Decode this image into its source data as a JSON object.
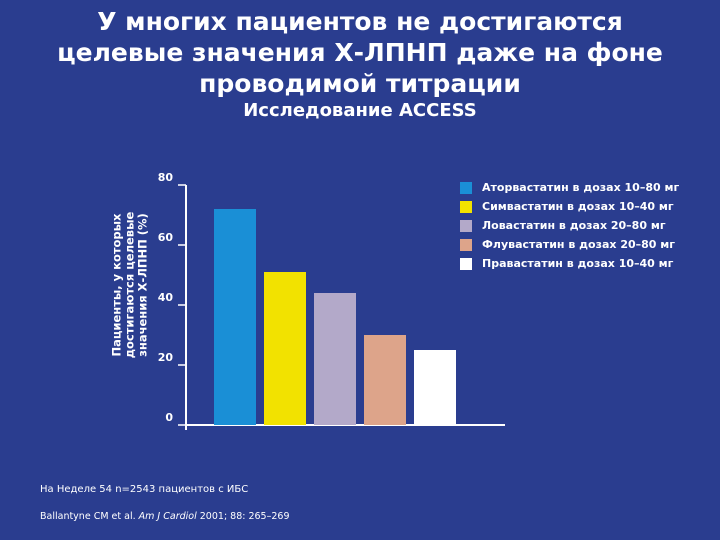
{
  "header": {
    "title_lines": [
      "У многих пациентов не достигаются",
      "целевые значения Х-ЛПНП даже на фоне",
      "проводимой титрации"
    ],
    "subtitle": "Исследование ACCESS"
  },
  "chart_data": {
    "type": "bar",
    "ylabel_lines": [
      "Пациенты, у которых",
      "достигаются целевые",
      "значения Х-ЛПНП (%)"
    ],
    "ylim": [
      0,
      80
    ],
    "yticks": [
      "0",
      "20",
      "40",
      "60",
      "80"
    ],
    "grid": false,
    "legend_position": "right",
    "series": [
      {
        "name": "Аторвастатин в дозах 10–80 мг",
        "value": 72,
        "color": "#1a8fd6"
      },
      {
        "name": "Симвастатин в дозах 10–40 мг",
        "value": 51,
        "color": "#f2e200"
      },
      {
        "name": "Ловастатин в дозах 20–80 мг",
        "value": 44,
        "color": "#b3a9c9"
      },
      {
        "name": "Флувастатин в дозах 20–80 мг",
        "value": 30,
        "color": "#dda48a"
      },
      {
        "name": "Правастатин в дозах 10–40 мг",
        "value": 25,
        "color": "#ffffff"
      }
    ]
  },
  "footnote": {
    "text": "На Неделе 54 n=2543 пациентов с ИБС"
  },
  "reference": {
    "authors": "Ballantyne CM et al.",
    "journal": "Am J Cardiol",
    "details": "2001; 88: 265–269"
  }
}
